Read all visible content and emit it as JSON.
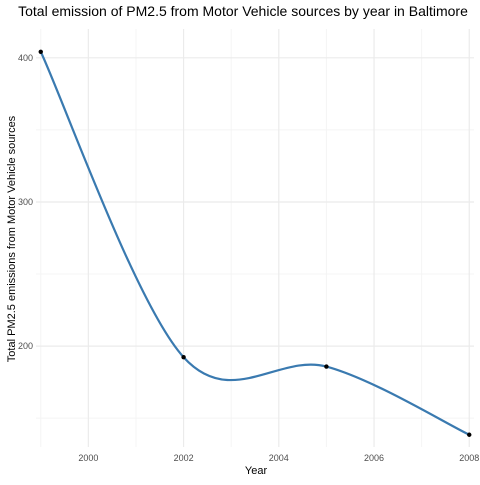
{
  "chart_data": {
    "type": "line",
    "title": "Total emission of PM2.5 from Motor Vehicle sources by year in Baltimore",
    "xlabel": "Year",
    "ylabel": "Total PM2.5 emissions from Motor Vehicle sources",
    "x": [
      1999,
      2002,
      2005,
      2008
    ],
    "y": [
      404.2,
      192.3,
      185.8,
      138.5
    ],
    "xlim": [
      1998.9,
      2008.1
    ],
    "ylim": [
      130,
      420
    ],
    "x_ticks": [
      2000,
      2002,
      2004,
      2006,
      2008
    ],
    "x_tick_labels": [
      "2000",
      "2002",
      "2004",
      "2006",
      "2008"
    ],
    "y_ticks": [
      200,
      300,
      400
    ],
    "y_tick_labels": [
      "200",
      "300",
      "400"
    ],
    "grid": true,
    "legend": "none",
    "colors": {
      "line": "#3a7ab0",
      "point": "#000000",
      "grid_major": "#ebebeb",
      "grid_minor": "#f4f4f4",
      "text": "#000000",
      "tick_text": "#4d4d4d"
    }
  }
}
